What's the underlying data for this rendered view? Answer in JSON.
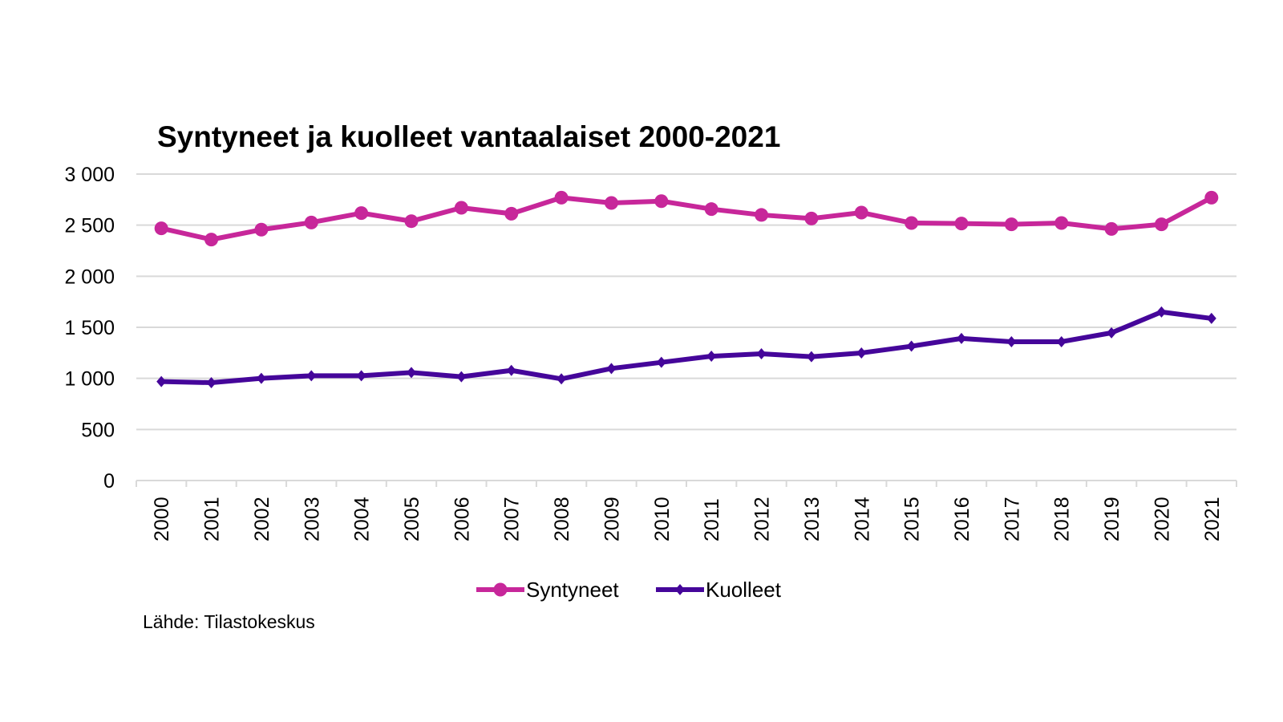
{
  "chart_data": {
    "type": "line",
    "title": "Syntyneet ja kuolleet vantaalaiset 2000-2021",
    "xlabel": "",
    "ylabel": "",
    "ylim": [
      0,
      3000
    ],
    "yticks": [
      0,
      500,
      1000,
      1500,
      2000,
      2500,
      3000
    ],
    "ytick_labels": [
      "0",
      "500",
      "1 000",
      "1 500",
      "2 000",
      "2 500",
      "3 000"
    ],
    "grid": true,
    "legend_position": "bottom",
    "categories": [
      "2000",
      "2001",
      "2002",
      "2003",
      "2004",
      "2005",
      "2006",
      "2007",
      "2008",
      "2009",
      "2010",
      "2011",
      "2012",
      "2013",
      "2014",
      "2015",
      "2016",
      "2017",
      "2018",
      "2019",
      "2020",
      "2021"
    ],
    "series": [
      {
        "name": "Syntyneet",
        "color": "#c7279a",
        "marker": "circle",
        "values": [
          2469,
          2359,
          2456,
          2526,
          2618,
          2539,
          2670,
          2612,
          2769,
          2717,
          2735,
          2657,
          2600,
          2565,
          2623,
          2521,
          2516,
          2508,
          2521,
          2463,
          2508,
          2769
        ]
      },
      {
        "name": "Kuolleet",
        "color": "#45069a",
        "marker": "diamond",
        "values": [
          969,
          958,
          1000,
          1026,
          1026,
          1057,
          1016,
          1078,
          995,
          1097,
          1157,
          1217,
          1241,
          1212,
          1249,
          1315,
          1391,
          1359,
          1359,
          1446,
          1650,
          1587
        ]
      }
    ],
    "source": "Lähde: Tilastokeskus"
  }
}
